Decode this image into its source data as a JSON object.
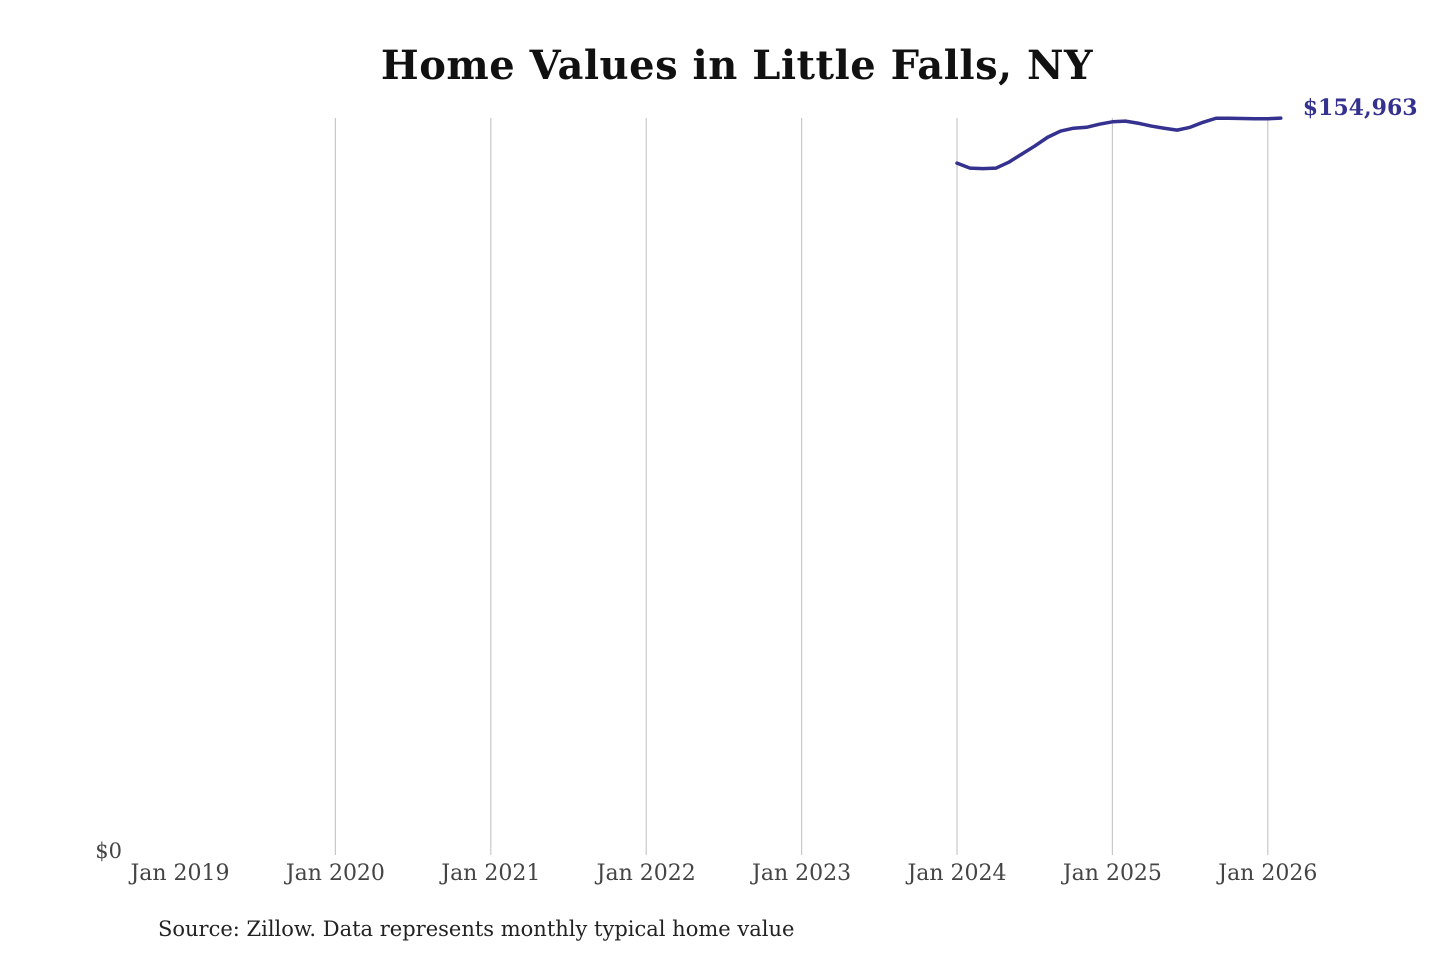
{
  "chart_data": {
    "type": "line",
    "title": "Home Values in Little Falls, NY",
    "xlabel": "",
    "ylabel": "",
    "ylim": [
      0,
      155000
    ],
    "y_tick_labels": [
      "$0"
    ],
    "x_tick_labels": [
      "Jan 2019",
      "Jan 2020",
      "Jan 2021",
      "Jan 2022",
      "Jan 2023",
      "Jan 2024",
      "Jan 2025",
      "Jan 2026"
    ],
    "xlim": [
      "2019-01",
      "2026-03"
    ],
    "grid": "vertical",
    "line_color": "#35318f",
    "end_label": "$154,963",
    "series": [
      {
        "x": [
          "2024-01",
          "2024-02",
          "2024-03",
          "2024-04",
          "2024-05",
          "2024-06",
          "2024-07",
          "2024-08",
          "2024-09",
          "2024-10",
          "2024-11",
          "2024-12",
          "2025-01",
          "2025-02",
          "2025-03",
          "2025-04",
          "2025-05",
          "2025-06",
          "2025-07",
          "2025-08",
          "2025-09",
          "2025-10",
          "2025-11",
          "2025-12",
          "2026-01",
          "2026-02"
        ],
        "values": [
          145500,
          144450,
          144350,
          144450,
          145700,
          147400,
          149100,
          150950,
          152250,
          152850,
          153050,
          153700,
          154200,
          154350,
          153900,
          153300,
          152850,
          152450,
          153050,
          154100,
          154950,
          154950,
          154900,
          154850,
          154850,
          154963
        ]
      }
    ]
  },
  "source": "Source: Zillow. Data represents monthly typical home value"
}
